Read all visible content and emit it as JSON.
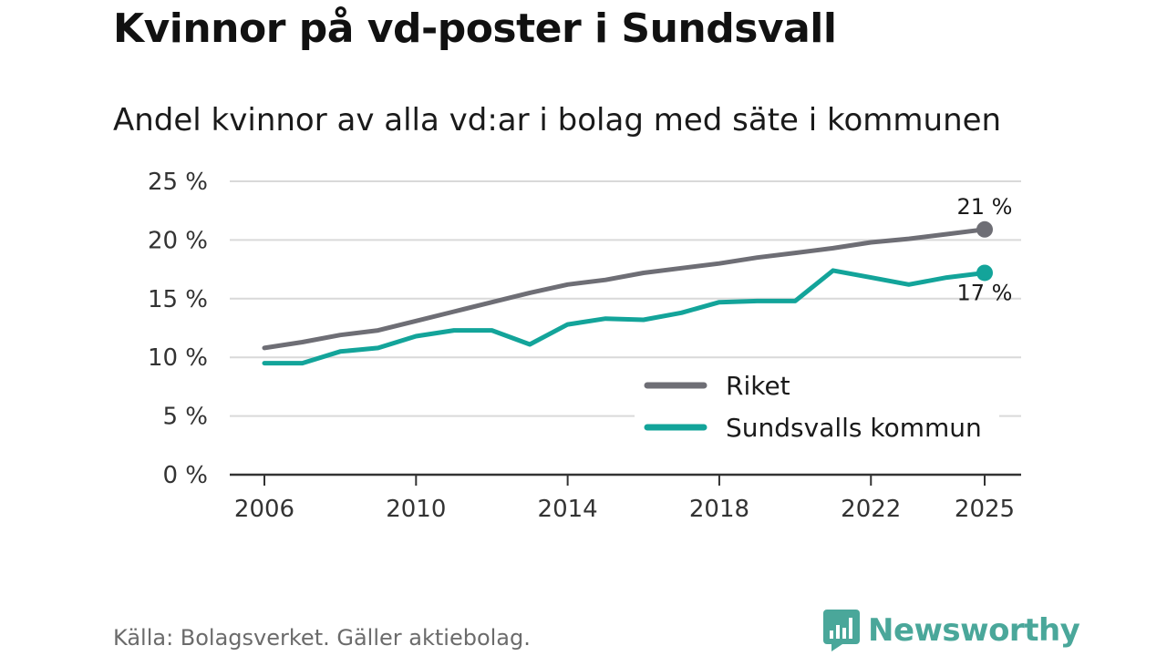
{
  "title": "Kvinnor på vd-poster i Sundsvall",
  "source": "Källa: Bolagsverket. Gäller aktiebolag.",
  "brand": {
    "name": "Newsworthy",
    "logo_icon": "bar-chart-logo-icon",
    "color": "#4aa79a"
  },
  "chart_data": {
    "type": "line",
    "title": "Kvinnor på vd-poster i Sundsvall",
    "subtitle": "Andel kvinnor av alla vd:ar i bolag med säte i kommunen",
    "xlabel": "",
    "ylabel": "",
    "x": [
      2006,
      2007,
      2008,
      2009,
      2010,
      2011,
      2012,
      2013,
      2014,
      2015,
      2016,
      2017,
      2018,
      2019,
      2020,
      2021,
      2022,
      2023,
      2024,
      2025
    ],
    "x_ticks": [
      "2006",
      "2010",
      "2014",
      "2018",
      "2022",
      "2025"
    ],
    "x_tick_values": [
      2006,
      2010,
      2014,
      2018,
      2022,
      2025
    ],
    "ylim": [
      0,
      25
    ],
    "y_ticks": [
      0,
      5,
      10,
      15,
      20,
      25
    ],
    "y_tick_labels": [
      "0 %",
      "5 %",
      "10 %",
      "15 %",
      "20 %",
      "25 %"
    ],
    "grid": true,
    "legend_position": "bottom-right",
    "series": [
      {
        "name": "Riket",
        "color": "#6e6e75",
        "values": [
          10.8,
          11.3,
          11.9,
          12.3,
          13.1,
          13.9,
          14.7,
          15.5,
          16.2,
          16.6,
          17.2,
          17.6,
          18.0,
          18.5,
          18.9,
          19.3,
          19.8,
          20.1,
          20.5,
          20.9
        ],
        "end_label": "21 %"
      },
      {
        "name": "Sundsvalls kommun",
        "color": "#13a49a",
        "values": [
          9.5,
          9.5,
          10.5,
          10.8,
          11.8,
          12.3,
          12.3,
          11.1,
          12.8,
          13.3,
          13.2,
          13.8,
          14.7,
          14.8,
          14.8,
          17.4,
          16.8,
          16.2,
          16.8,
          17.2
        ],
        "end_label": "17 %"
      }
    ]
  }
}
